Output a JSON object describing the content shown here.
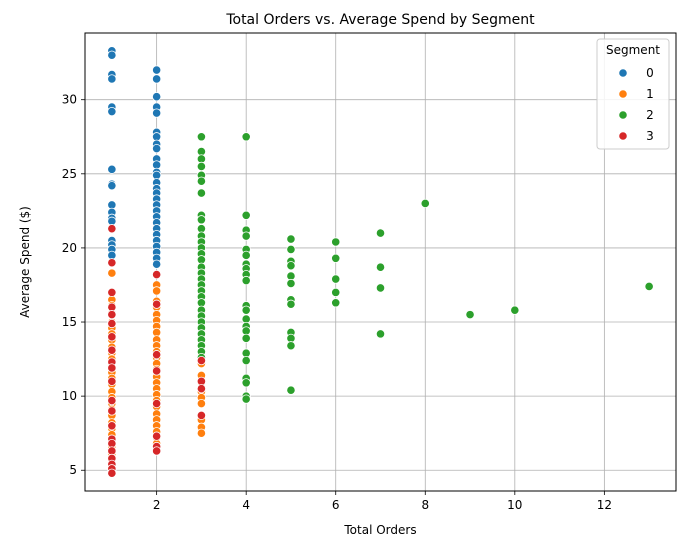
{
  "chart_data": {
    "type": "scatter",
    "title": "Total Orders vs. Average Spend by Segment",
    "xlabel": "Total Orders",
    "ylabel": "Average Spend ($)",
    "xlim": [
      0.4,
      13.6
    ],
    "ylim": [
      3.6,
      34.5
    ],
    "xticks": [
      2,
      4,
      6,
      8,
      10,
      12
    ],
    "yticks": [
      5,
      10,
      15,
      20,
      25,
      30
    ],
    "grid": true,
    "legend": {
      "title": "Segment",
      "position": "top-right"
    },
    "series": [
      {
        "name": "0",
        "color": "#1f77b4",
        "points": [
          [
            1,
            33.3
          ],
          [
            1,
            33.0
          ],
          [
            1,
            31.7
          ],
          [
            1,
            31.4
          ],
          [
            1,
            29.5
          ],
          [
            1,
            29.2
          ],
          [
            1,
            25.3
          ],
          [
            1,
            24.3
          ],
          [
            1,
            24.2
          ],
          [
            1,
            22.9
          ],
          [
            1,
            22.4
          ],
          [
            1,
            22.0
          ],
          [
            1,
            21.8
          ],
          [
            1,
            20.5
          ],
          [
            1,
            20.2
          ],
          [
            1,
            19.9
          ],
          [
            1,
            19.5
          ],
          [
            2,
            32.0
          ],
          [
            2,
            31.4
          ],
          [
            2,
            30.2
          ],
          [
            2,
            29.5
          ],
          [
            2,
            29.1
          ],
          [
            2,
            27.8
          ],
          [
            2,
            27.5
          ],
          [
            2,
            27.0
          ],
          [
            2,
            26.7
          ],
          [
            2,
            26.0
          ],
          [
            2,
            25.6
          ],
          [
            2,
            25.1
          ],
          [
            2,
            24.9
          ],
          [
            2,
            24.4
          ],
          [
            2,
            24.0
          ],
          [
            2,
            23.7
          ],
          [
            2,
            23.3
          ],
          [
            2,
            22.9
          ],
          [
            2,
            22.5
          ],
          [
            2,
            22.1
          ],
          [
            2,
            21.7
          ],
          [
            2,
            21.3
          ],
          [
            2,
            20.9
          ],
          [
            2,
            20.5
          ],
          [
            2,
            20.1
          ],
          [
            2,
            19.7
          ],
          [
            2,
            19.3
          ],
          [
            2,
            18.9
          ]
        ]
      },
      {
        "name": "1",
        "color": "#ff7f0e",
        "points": [
          [
            1,
            18.3
          ],
          [
            1,
            16.5
          ],
          [
            1,
            16.1
          ],
          [
            1,
            15.6
          ],
          [
            1,
            15.0
          ],
          [
            1,
            14.6
          ],
          [
            1,
            14.2
          ],
          [
            1,
            13.8
          ],
          [
            1,
            13.3
          ],
          [
            1,
            12.9
          ],
          [
            1,
            12.5
          ],
          [
            1,
            12.0
          ],
          [
            1,
            11.6
          ],
          [
            1,
            11.2
          ],
          [
            1,
            10.8
          ],
          [
            1,
            10.3
          ],
          [
            1,
            9.9
          ],
          [
            1,
            9.5
          ],
          [
            1,
            9.1
          ],
          [
            1,
            8.7
          ],
          [
            1,
            8.2
          ],
          [
            1,
            7.8
          ],
          [
            1,
            7.4
          ],
          [
            1,
            7.0
          ],
          [
            1,
            6.6
          ],
          [
            1,
            6.1
          ],
          [
            1,
            5.7
          ],
          [
            1,
            5.3
          ],
          [
            1,
            5.0
          ],
          [
            2,
            17.5
          ],
          [
            2,
            17.1
          ],
          [
            2,
            16.4
          ],
          [
            2,
            16.0
          ],
          [
            2,
            15.5
          ],
          [
            2,
            15.1
          ],
          [
            2,
            14.7
          ],
          [
            2,
            14.3
          ],
          [
            2,
            13.8
          ],
          [
            2,
            13.4
          ],
          [
            2,
            13.0
          ],
          [
            2,
            12.6
          ],
          [
            2,
            12.2
          ],
          [
            2,
            11.8
          ],
          [
            2,
            11.3
          ],
          [
            2,
            10.9
          ],
          [
            2,
            10.5
          ],
          [
            2,
            10.1
          ],
          [
            2,
            9.7
          ],
          [
            2,
            9.3
          ],
          [
            2,
            8.8
          ],
          [
            2,
            8.4
          ],
          [
            2,
            8.0
          ],
          [
            2,
            7.6
          ],
          [
            2,
            7.2
          ],
          [
            2,
            6.8
          ],
          [
            3,
            12.7
          ],
          [
            3,
            12.2
          ],
          [
            3,
            11.4
          ],
          [
            3,
            10.9
          ],
          [
            3,
            10.3
          ],
          [
            3,
            9.9
          ],
          [
            3,
            9.5
          ],
          [
            3,
            8.4
          ],
          [
            3,
            7.9
          ],
          [
            3,
            7.5
          ]
        ]
      },
      {
        "name": "2",
        "color": "#2ca02c",
        "points": [
          [
            3,
            27.5
          ],
          [
            3,
            26.5
          ],
          [
            3,
            26.0
          ],
          [
            3,
            25.5
          ],
          [
            3,
            24.9
          ],
          [
            3,
            24.5
          ],
          [
            3,
            23.7
          ],
          [
            3,
            22.2
          ],
          [
            3,
            21.9
          ],
          [
            3,
            21.3
          ],
          [
            3,
            20.8
          ],
          [
            3,
            20.4
          ],
          [
            3,
            20.0
          ],
          [
            3,
            19.6
          ],
          [
            3,
            19.2
          ],
          [
            3,
            18.7
          ],
          [
            3,
            18.3
          ],
          [
            3,
            17.9
          ],
          [
            3,
            17.5
          ],
          [
            3,
            17.1
          ],
          [
            3,
            16.7
          ],
          [
            3,
            16.3
          ],
          [
            3,
            15.8
          ],
          [
            3,
            15.4
          ],
          [
            3,
            15.0
          ],
          [
            3,
            14.6
          ],
          [
            3,
            14.2
          ],
          [
            3,
            13.8
          ],
          [
            3,
            13.4
          ],
          [
            3,
            13.0
          ],
          [
            3,
            12.6
          ],
          [
            4,
            27.5
          ],
          [
            4,
            22.2
          ],
          [
            4,
            21.2
          ],
          [
            4,
            20.8
          ],
          [
            4,
            19.9
          ],
          [
            4,
            19.5
          ],
          [
            4,
            18.9
          ],
          [
            4,
            18.6
          ],
          [
            4,
            18.2
          ],
          [
            4,
            17.8
          ],
          [
            4,
            16.1
          ],
          [
            4,
            15.8
          ],
          [
            4,
            15.2
          ],
          [
            4,
            14.7
          ],
          [
            4,
            14.4
          ],
          [
            4,
            13.9
          ],
          [
            4,
            12.9
          ],
          [
            4,
            12.4
          ],
          [
            4,
            11.2
          ],
          [
            4,
            10.9
          ],
          [
            4,
            10.0
          ],
          [
            4,
            9.8
          ],
          [
            5,
            20.6
          ],
          [
            5,
            19.9
          ],
          [
            5,
            19.1
          ],
          [
            5,
            18.8
          ],
          [
            5,
            18.1
          ],
          [
            5,
            17.6
          ],
          [
            5,
            16.5
          ],
          [
            5,
            16.2
          ],
          [
            5,
            14.3
          ],
          [
            5,
            13.9
          ],
          [
            5,
            13.4
          ],
          [
            5,
            10.4
          ],
          [
            6,
            20.4
          ],
          [
            6,
            19.3
          ],
          [
            6,
            17.9
          ],
          [
            6,
            17.0
          ],
          [
            6,
            16.3
          ],
          [
            7,
            21.0
          ],
          [
            7,
            18.7
          ],
          [
            7,
            17.3
          ],
          [
            7,
            14.2
          ],
          [
            8,
            23.0
          ],
          [
            9,
            15.5
          ],
          [
            10,
            15.8
          ],
          [
            13,
            17.4
          ]
        ]
      },
      {
        "name": "3",
        "color": "#d62728",
        "points": [
          [
            1,
            21.3
          ],
          [
            1,
            19.0
          ],
          [
            1,
            17.0
          ],
          [
            1,
            16.0
          ],
          [
            1,
            15.5
          ],
          [
            1,
            14.9
          ],
          [
            1,
            14.0
          ],
          [
            1,
            13.1
          ],
          [
            1,
            12.3
          ],
          [
            1,
            11.9
          ],
          [
            1,
            11.0
          ],
          [
            1,
            9.7
          ],
          [
            1,
            9.0
          ],
          [
            1,
            8.0
          ],
          [
            1,
            7.1
          ],
          [
            1,
            6.8
          ],
          [
            1,
            6.3
          ],
          [
            1,
            5.8
          ],
          [
            1,
            5.4
          ],
          [
            1,
            5.1
          ],
          [
            1,
            4.8
          ],
          [
            2,
            18.2
          ],
          [
            2,
            16.2
          ],
          [
            2,
            12.8
          ],
          [
            2,
            11.7
          ],
          [
            2,
            9.5
          ],
          [
            2,
            7.3
          ],
          [
            2,
            6.6
          ],
          [
            2,
            6.3
          ],
          [
            3,
            12.4
          ],
          [
            3,
            11.0
          ],
          [
            3,
            10.5
          ],
          [
            3,
            8.7
          ]
        ]
      }
    ]
  }
}
